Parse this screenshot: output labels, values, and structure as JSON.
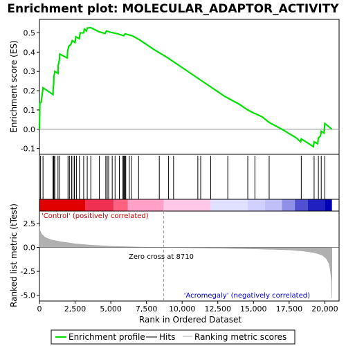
{
  "chart_data": {
    "type": "line",
    "title": "Enrichment plot: MOLECULAR_ADAPTOR_ACTIVITY",
    "xlabel": "Rank in Ordered Dataset",
    "ylabel_top": "Enrichment score (ES)",
    "ylabel_bottom": "Ranked list metric (tTest)",
    "x_range": [
      0,
      21000
    ],
    "es_ylim": [
      -0.13,
      0.57
    ],
    "metric_ylim": [
      -5.6,
      3.8
    ],
    "x_ticks": [
      0,
      2500,
      5000,
      7500,
      10000,
      12500,
      15000,
      17500,
      20000
    ],
    "x_tick_labels": [
      "0",
      "2,500",
      "5,000",
      "7,500",
      "10,000",
      "12,500",
      "15,000",
      "17,500",
      "20,000"
    ],
    "es_ticks": [
      -0.1,
      0.0,
      0.1,
      0.2,
      0.3,
      0.4,
      0.5
    ],
    "es_tick_labels": [
      "-0.1",
      "0.0",
      "0.1",
      "0.2",
      "0.3",
      "0.4",
      "0.5"
    ],
    "metric_ticks": [
      -5.0,
      -2.5,
      0.0,
      2.5
    ],
    "metric_tick_labels": [
      "-5.0",
      "-2.5",
      "0.0",
      "2.5"
    ],
    "zero_cross_rank": 8710,
    "annotations": {
      "zero_cross": "Zero cross at 8710",
      "positive": "'Control' (positively correlated)",
      "negative": "'Acromegaly' (negatively correlated)"
    },
    "legend": [
      "Enrichment profile",
      "Hits",
      "Ranking metric scores"
    ],
    "colors": {
      "enrichment": "#00e000",
      "hits": "#000000",
      "metric": "#b0b0b0",
      "positive_label": "#cc0000",
      "negative_label": "#0000cc"
    },
    "enrichment_profile": [
      [
        0,
        0.0
      ],
      [
        30,
        0.135
      ],
      [
        120,
        0.14
      ],
      [
        250,
        0.215
      ],
      [
        950,
        0.18
      ],
      [
        960,
        0.21
      ],
      [
        1000,
        0.24
      ],
      [
        1010,
        0.27
      ],
      [
        1080,
        0.3
      ],
      [
        1300,
        0.29
      ],
      [
        1310,
        0.33
      ],
      [
        1400,
        0.36
      ],
      [
        1420,
        0.39
      ],
      [
        1950,
        0.37
      ],
      [
        1970,
        0.4
      ],
      [
        2050,
        0.43
      ],
      [
        2200,
        0.44
      ],
      [
        2300,
        0.46
      ],
      [
        2500,
        0.45
      ],
      [
        2550,
        0.48
      ],
      [
        2800,
        0.47
      ],
      [
        2850,
        0.5
      ],
      [
        3100,
        0.5
      ],
      [
        3150,
        0.52
      ],
      [
        3300,
        0.51
      ],
      [
        3350,
        0.525
      ],
      [
        3600,
        0.527
      ],
      [
        4200,
        0.505
      ],
      [
        4600,
        0.497
      ],
      [
        4700,
        0.51
      ],
      [
        5000,
        0.503
      ],
      [
        5500,
        0.495
      ],
      [
        5900,
        0.485
      ],
      [
        6000,
        0.495
      ],
      [
        6500,
        0.485
      ],
      [
        7000,
        0.465
      ],
      [
        8000,
        0.415
      ],
      [
        9000,
        0.37
      ],
      [
        10000,
        0.32
      ],
      [
        11000,
        0.27
      ],
      [
        12000,
        0.22
      ],
      [
        13000,
        0.17
      ],
      [
        14000,
        0.13
      ],
      [
        14600,
        0.1
      ],
      [
        15000,
        0.085
      ],
      [
        15600,
        0.065
      ],
      [
        16100,
        0.035
      ],
      [
        17000,
        0.0
      ],
      [
        18000,
        -0.045
      ],
      [
        18300,
        -0.065
      ],
      [
        18350,
        -0.05
      ],
      [
        19200,
        -0.09
      ],
      [
        19250,
        -0.065
      ],
      [
        19500,
        -0.075
      ],
      [
        19550,
        -0.045
      ],
      [
        19700,
        -0.035
      ],
      [
        19750,
        -0.01
      ],
      [
        19950,
        -0.02
      ],
      [
        20000,
        0.03
      ],
      [
        20500,
        0.0
      ]
    ],
    "hits": [
      80,
      250,
      950,
      980,
      1020,
      1080,
      1300,
      1400,
      2000,
      2100,
      2250,
      2350,
      2450,
      2600,
      2800,
      3100,
      3350,
      3600,
      4200,
      4650,
      4750,
      4850,
      5100,
      5300,
      5600,
      5850,
      5900,
      5950,
      6000,
      6050,
      6300,
      6450,
      6950,
      8400,
      9050,
      9400,
      11100,
      11300,
      12000,
      13200,
      14600,
      15100,
      16100,
      18350,
      19250,
      19550,
      19750,
      20000
    ],
    "metric_profile": [
      [
        0,
        2.2
      ],
      [
        30,
        1.8
      ],
      [
        150,
        1.4
      ],
      [
        400,
        1.05
      ],
      [
        800,
        0.8
      ],
      [
        1500,
        0.6
      ],
      [
        2500,
        0.38
      ],
      [
        3500,
        0.25
      ],
      [
        5000,
        0.12
      ],
      [
        7000,
        0.04
      ],
      [
        8710,
        0.0
      ],
      [
        10500,
        -0.04
      ],
      [
        13000,
        -0.1
      ],
      [
        15500,
        -0.17
      ],
      [
        17500,
        -0.26
      ],
      [
        18500,
        -0.38
      ],
      [
        19300,
        -0.55
      ],
      [
        19800,
        -0.8
      ],
      [
        20100,
        -1.15
      ],
      [
        20300,
        -1.7
      ],
      [
        20400,
        -2.5
      ],
      [
        20470,
        -3.5
      ],
      [
        20500,
        -5.3
      ]
    ],
    "heat_bands": [
      {
        "from": 0,
        "to": 3200,
        "color": "#e00000"
      },
      {
        "from": 3200,
        "to": 5200,
        "color": "#f03050"
      },
      {
        "from": 5200,
        "to": 6200,
        "color": "#ff6080"
      },
      {
        "from": 6200,
        "to": 8710,
        "color": "#ffa0c8"
      },
      {
        "from": 8710,
        "to": 12000,
        "color": "#ffc8e8"
      },
      {
        "from": 12000,
        "to": 14600,
        "color": "#e0e0ff"
      },
      {
        "from": 14600,
        "to": 15800,
        "color": "#d0d0ff"
      },
      {
        "from": 15800,
        "to": 17000,
        "color": "#c0c0f8"
      },
      {
        "from": 17000,
        "to": 17900,
        "color": "#9090e8"
      },
      {
        "from": 17900,
        "to": 18800,
        "color": "#5050d0"
      },
      {
        "from": 18800,
        "to": 20000,
        "color": "#2020c0"
      },
      {
        "from": 20000,
        "to": 20500,
        "color": "#0000b8"
      }
    ]
  }
}
